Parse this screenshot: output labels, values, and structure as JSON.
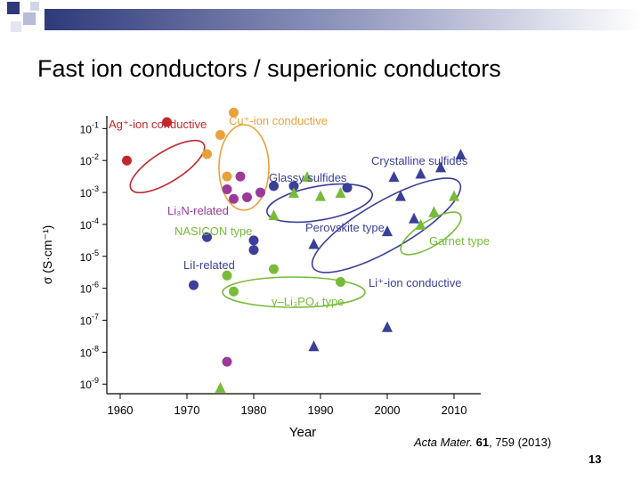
{
  "slide": {
    "title": "Fast ion conductors / superionic conductors",
    "citation_journal": "Acta Mater.",
    "citation_volume": "61",
    "citation_rest": ", 759 (2013)",
    "page_number": "13"
  },
  "chart_data": {
    "type": "scatter",
    "title": "",
    "xlabel": "Year",
    "ylabel": "σ (S·cm⁻¹)",
    "xlim": [
      1958,
      2014
    ],
    "ylim": [
      -9.3,
      -0.6
    ],
    "yscale": "log",
    "x_ticks": [
      1960,
      1970,
      1980,
      1990,
      2000,
      2010
    ],
    "y_ticks": [
      {
        "value": -1,
        "base": "10",
        "exp": "-1"
      },
      {
        "value": -2,
        "base": "10",
        "exp": "-2"
      },
      {
        "value": -3,
        "base": "10",
        "exp": "-3"
      },
      {
        "value": -4,
        "base": "10",
        "exp": "-4"
      },
      {
        "value": -5,
        "base": "10",
        "exp": "-5"
      },
      {
        "value": -6,
        "base": "10",
        "exp": "-6"
      },
      {
        "value": -7,
        "base": "10",
        "exp": "-7"
      },
      {
        "value": -8,
        "base": "10",
        "exp": "-8"
      },
      {
        "value": -9,
        "base": "10",
        "exp": "-9"
      }
    ],
    "grid": false,
    "colors": {
      "ag": "#c0282e",
      "cu": "#e8a23c",
      "li_purple": "#9b3a9a",
      "li_blue": "#3b3f98",
      "green": "#78bb3a",
      "text_blue": "#3b3f98"
    },
    "series": [
      {
        "name": "Ag⁺-ion conductive",
        "marker": "circle",
        "color": "#c0282e",
        "points": [
          [
            1961,
            -2.0
          ],
          [
            1967,
            -0.8
          ]
        ]
      },
      {
        "name": "Cu⁺-ion conductive",
        "marker": "circle",
        "color": "#e8a23c",
        "points": [
          [
            1975,
            -1.2
          ],
          [
            1977,
            -0.5
          ],
          [
            1973,
            -1.8
          ],
          [
            1976,
            -2.5
          ]
        ]
      },
      {
        "name": "Li₃N-related",
        "marker": "circle",
        "color": "#9b3a9a",
        "points": [
          [
            1976,
            -2.9
          ],
          [
            1978,
            -2.5
          ],
          [
            1977,
            -3.2
          ],
          [
            1979,
            -3.15
          ],
          [
            1981,
            -3.0
          ],
          [
            1976,
            -8.3
          ]
        ]
      },
      {
        "name": "LiI-related",
        "marker": "circle",
        "color": "#3b3f98",
        "points": [
          [
            1973,
            -4.4
          ],
          [
            1971,
            -5.9
          ],
          [
            1980,
            -4.5
          ],
          [
            1980,
            -4.8
          ],
          [
            1983,
            -2.8
          ],
          [
            1986,
            -2.8
          ],
          [
            1994,
            -2.85
          ]
        ]
      },
      {
        "name": "γ–Li₃PO₄ type",
        "marker": "circle",
        "color": "#78bb3a",
        "points": [
          [
            1976,
            -5.6
          ],
          [
            1977,
            -6.1
          ],
          [
            1983,
            -5.4
          ],
          [
            1993,
            -5.8
          ]
        ]
      },
      {
        "name": "Crystalline sulfides / Li⁺-ion conductive",
        "marker": "triangle",
        "color": "#3b3f98",
        "points": [
          [
            2001,
            -2.5
          ],
          [
            2002,
            -3.1
          ],
          [
            2005,
            -2.4
          ],
          [
            2008,
            -2.2
          ],
          [
            2011,
            -1.8
          ],
          [
            2007,
            -3.6
          ],
          [
            2004,
            -3.8
          ],
          [
            2000,
            -4.2
          ],
          [
            1989,
            -4.6
          ],
          [
            2000,
            -7.2
          ],
          [
            1989,
            -7.8
          ]
        ]
      },
      {
        "name": "Glassy sulfides / NASICON type / Garnet type",
        "marker": "triangle",
        "color": "#78bb3a",
        "points": [
          [
            1986,
            -3.0
          ],
          [
            1988,
            -2.5
          ],
          [
            1993,
            -3.0
          ],
          [
            1990,
            -3.1
          ],
          [
            1983,
            -3.7
          ],
          [
            2005,
            -4.0
          ],
          [
            2007,
            -3.6
          ],
          [
            2010,
            -3.1
          ],
          [
            1975,
            -9.1
          ]
        ]
      }
    ],
    "annotations": [
      {
        "text": "Ag⁺-ion conductive",
        "color": "#c0282e"
      },
      {
        "text": "Cu⁺-ion conductive",
        "color": "#e8a23c"
      },
      {
        "text": "Glassy sulfides",
        "color": "#3b3f98"
      },
      {
        "text": "Crystalline sulfides",
        "color": "#3b3f98"
      },
      {
        "text": "Li₃N-related",
        "color": "#9b3a9a"
      },
      {
        "text": "NASICON type",
        "color": "#78bb3a"
      },
      {
        "text": "Perovskite type",
        "color": "#3b3f98"
      },
      {
        "text": "Garnet type",
        "color": "#78bb3a"
      },
      {
        "text": "LiI-related",
        "color": "#3b3f98"
      },
      {
        "text": "Li⁺-ion conductive",
        "color": "#3b3f98"
      },
      {
        "text": "γ–Li₃PO₄ type",
        "color": "#78bb3a"
      }
    ]
  }
}
